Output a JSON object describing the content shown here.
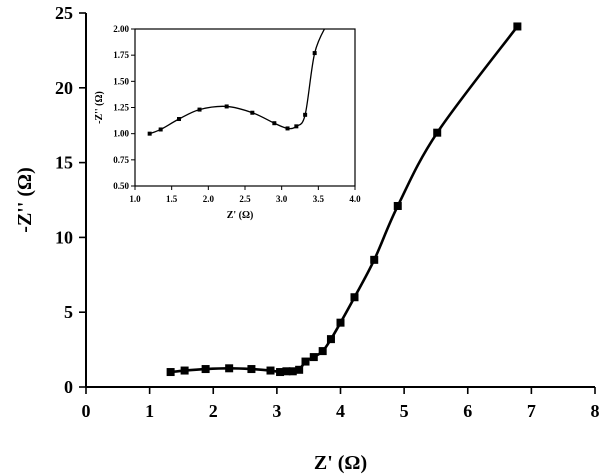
{
  "chart_data": [
    {
      "type": "line",
      "xlabel": "Z' (Ω)",
      "ylabel": "-Z'' (Ω)",
      "xlim": [
        0,
        8
      ],
      "ylim": [
        0,
        25
      ],
      "xticks": [
        "0",
        "1",
        "2",
        "3",
        "4",
        "5",
        "6",
        "7",
        "8"
      ],
      "yticks": [
        "0",
        "5",
        "10",
        "15",
        "20",
        "25"
      ],
      "marker": "square",
      "grid": false,
      "series": [
        {
          "x": [
            1.33,
            1.55,
            1.88,
            2.25,
            2.6,
            2.9,
            3.05,
            3.15,
            3.25,
            3.35,
            3.45,
            3.58,
            3.72,
            3.85,
            4.0,
            4.22,
            4.53,
            4.9,
            5.52,
            6.78
          ],
          "y": [
            1.0,
            1.1,
            1.2,
            1.25,
            1.2,
            1.1,
            1.0,
            1.05,
            1.05,
            1.15,
            1.7,
            2.0,
            2.4,
            3.2,
            4.3,
            6.0,
            8.5,
            12.1,
            17.0,
            24.1
          ]
        }
      ]
    },
    {
      "type": "line",
      "position": "inset",
      "xlabel": "Z' (Ω)",
      "ylabel": "-Z'' (Ω)",
      "xlim": [
        1.0,
        4.0
      ],
      "ylim": [
        0.5,
        2.0
      ],
      "xticks": [
        "1.0",
        "1.5",
        "2.0",
        "2.5",
        "3.0",
        "3.5",
        "4.0"
      ],
      "yticks": [
        "0.50",
        "0.75",
        "1.00",
        "1.25",
        "1.50",
        "1.75",
        "2.00"
      ],
      "marker": "square",
      "grid": false,
      "series": [
        {
          "x": [
            1.2,
            1.35,
            1.6,
            1.88,
            2.25,
            2.6,
            2.9,
            3.08,
            3.2,
            3.32,
            3.45
          ],
          "y": [
            1.0,
            1.04,
            1.14,
            1.23,
            1.26,
            1.2,
            1.1,
            1.05,
            1.07,
            1.18,
            1.77
          ]
        }
      ]
    }
  ]
}
